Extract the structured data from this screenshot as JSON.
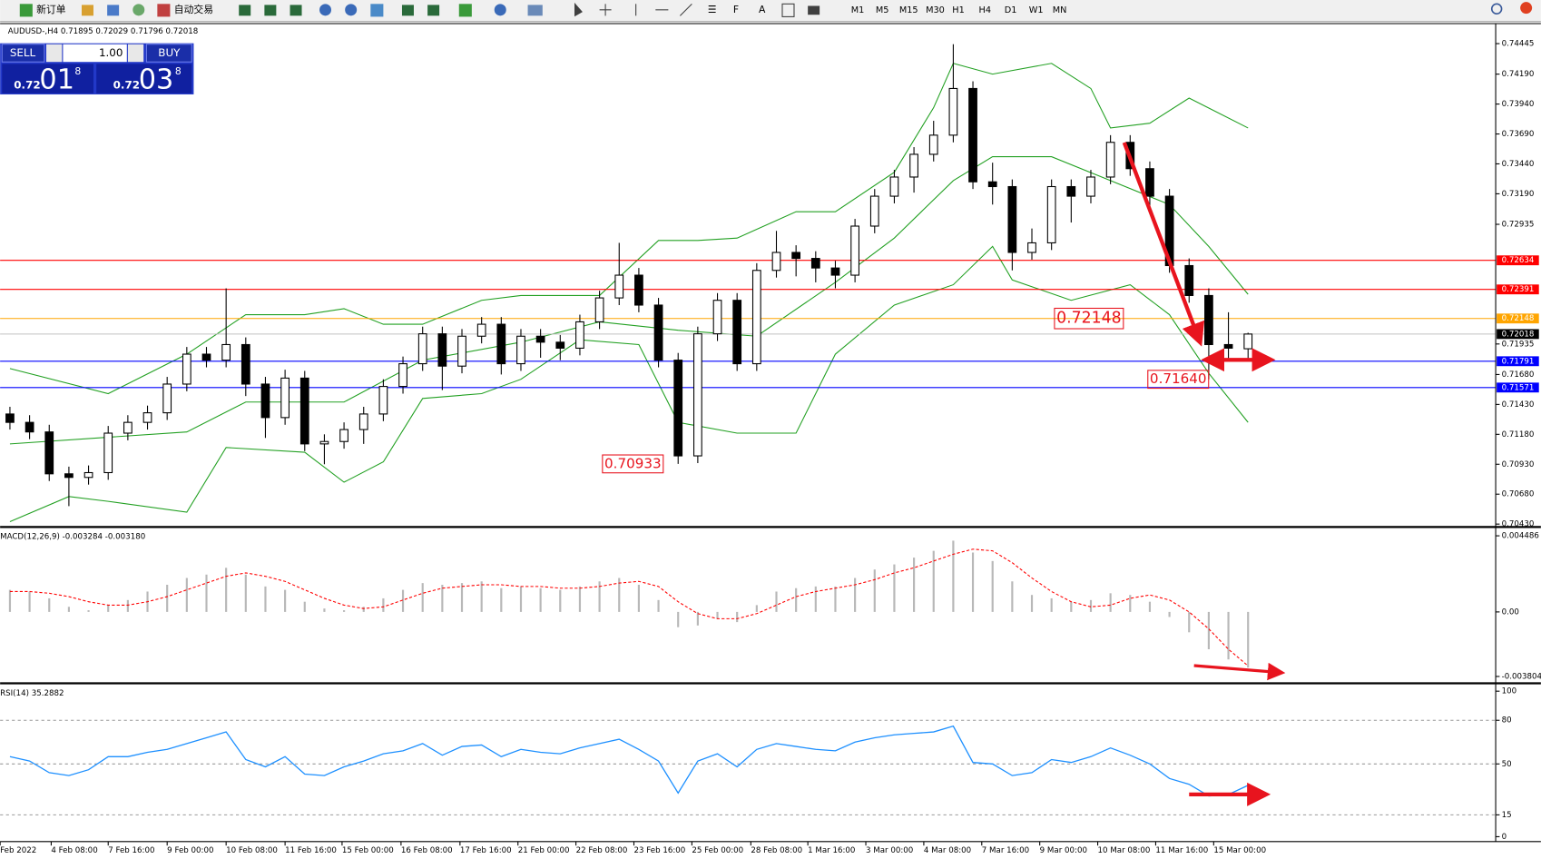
{
  "toolbar": {
    "new_order": "新订单",
    "auto_trading": "自动交易",
    "timeframes": [
      "M1",
      "M5",
      "M15",
      "M30",
      "H1",
      "H4",
      "D1",
      "W1",
      "MN"
    ]
  },
  "trade_panel": {
    "sell": "SELL",
    "lot": "1.00",
    "buy": "BUY",
    "bid_big": "0.72",
    "bid_pips": "01",
    "bid_point": "8",
    "ask_big": "0.72",
    "ask_pips": "03",
    "ask_point": "8"
  },
  "chart_data": [
    {
      "type": "candlestick",
      "title": "AUDUSD-,H4  0.71895 0.72029 0.71796 0.72018",
      "open": [
        0.7135,
        0.7128,
        0.712,
        0.7085,
        0.7082,
        0.7086,
        0.7119,
        0.7128,
        0.7136,
        0.716,
        0.7185,
        0.718,
        0.7193,
        0.716,
        0.7132,
        0.7165,
        0.711,
        0.7112,
        0.7122,
        0.7135,
        0.7158,
        0.7177,
        0.7202,
        0.7175,
        0.72,
        0.721,
        0.7177,
        0.72,
        0.7195,
        0.719,
        0.7212,
        0.7232,
        0.7251,
        0.7226,
        0.718,
        0.71,
        0.7202,
        0.723,
        0.7177,
        0.7255,
        0.727,
        0.7265,
        0.7257,
        0.7251,
        0.7292,
        0.7317,
        0.7333,
        0.7352,
        0.7368,
        0.7407,
        0.7329,
        0.7325,
        0.727,
        0.7278,
        0.7325,
        0.7317,
        0.7333,
        0.7362,
        0.734,
        0.7317,
        0.7259,
        0.7234,
        0.7193,
        0.71895
      ],
      "high": [
        0.7141,
        0.7134,
        0.7126,
        0.7091,
        0.7092,
        0.7125,
        0.7134,
        0.7142,
        0.7166,
        0.7191,
        0.7191,
        0.724,
        0.7199,
        0.7166,
        0.7172,
        0.7171,
        0.7118,
        0.7128,
        0.7141,
        0.7164,
        0.7183,
        0.7208,
        0.7208,
        0.7206,
        0.7216,
        0.7216,
        0.7206,
        0.7206,
        0.7201,
        0.7218,
        0.7238,
        0.7278,
        0.7257,
        0.7232,
        0.7186,
        0.7208,
        0.7236,
        0.7236,
        0.7261,
        0.7288,
        0.7276,
        0.7271,
        0.7263,
        0.7298,
        0.7323,
        0.7339,
        0.7358,
        0.738,
        0.7444,
        0.7413,
        0.7345,
        0.7331,
        0.729,
        0.7331,
        0.7331,
        0.7339,
        0.7368,
        0.7368,
        0.7346,
        0.7323,
        0.7265,
        0.724,
        0.722,
        0.72029
      ],
      "low": [
        0.7122,
        0.7114,
        0.7079,
        0.7058,
        0.7076,
        0.708,
        0.7113,
        0.7122,
        0.713,
        0.7154,
        0.7174,
        0.7174,
        0.715,
        0.7115,
        0.7126,
        0.7104,
        0.7093,
        0.7106,
        0.711,
        0.7129,
        0.7152,
        0.7171,
        0.7155,
        0.7169,
        0.7194,
        0.7168,
        0.7171,
        0.7182,
        0.718,
        0.7184,
        0.7206,
        0.7226,
        0.722,
        0.7174,
        0.70933,
        0.7094,
        0.7196,
        0.7171,
        0.7171,
        0.7249,
        0.725,
        0.7245,
        0.724,
        0.7245,
        0.7286,
        0.7311,
        0.732,
        0.7346,
        0.7362,
        0.7323,
        0.731,
        0.7255,
        0.7264,
        0.7272,
        0.7295,
        0.7311,
        0.7327,
        0.7334,
        0.7305,
        0.7253,
        0.7228,
        0.7164,
        0.718,
        0.71796
      ],
      "close": [
        0.7128,
        0.712,
        0.7085,
        0.7082,
        0.7086,
        0.7119,
        0.7128,
        0.7136,
        0.716,
        0.7185,
        0.718,
        0.7193,
        0.716,
        0.7132,
        0.7165,
        0.711,
        0.7112,
        0.7122,
        0.7135,
        0.7158,
        0.7177,
        0.7202,
        0.7175,
        0.72,
        0.721,
        0.7177,
        0.72,
        0.7195,
        0.719,
        0.7212,
        0.7232,
        0.7251,
        0.7226,
        0.718,
        0.71,
        0.7202,
        0.723,
        0.7177,
        0.7255,
        0.727,
        0.7265,
        0.7257,
        0.7251,
        0.7292,
        0.7317,
        0.7333,
        0.7352,
        0.7368,
        0.7407,
        0.7329,
        0.7325,
        0.727,
        0.7278,
        0.7325,
        0.7317,
        0.7333,
        0.7362,
        0.734,
        0.7317,
        0.7259,
        0.7234,
        0.7193,
        0.719,
        0.72018
      ],
      "overlays": [
        {
          "color": "#22a022",
          "x": [
            0,
            5,
            9,
            12,
            15,
            17,
            19,
            21,
            24,
            26,
            30,
            33,
            35,
            37,
            40,
            42,
            45,
            47,
            48,
            50,
            53,
            55,
            56,
            58,
            60,
            63
          ],
          "values": [
            0.7173,
            0.7152,
            0.7185,
            0.7218,
            0.7218,
            0.7223,
            0.721,
            0.721,
            0.723,
            0.7234,
            0.7234,
            0.728,
            0.728,
            0.7282,
            0.7304,
            0.7304,
            0.7337,
            0.7391,
            0.7428,
            0.7419,
            0.7428,
            0.7407,
            0.7374,
            0.7378,
            0.7399,
            0.7374
          ]
        },
        {
          "color": "#22a022",
          "x": [
            0,
            9,
            12,
            17,
            21,
            26,
            30,
            34,
            38,
            42,
            45,
            48,
            50,
            53,
            56,
            59,
            61,
            63
          ],
          "values": [
            0.711,
            0.712,
            0.7145,
            0.7145,
            0.718,
            0.7195,
            0.7212,
            0.7205,
            0.72,
            0.7245,
            0.7282,
            0.733,
            0.735,
            0.735,
            0.733,
            0.731,
            0.7275,
            0.7235
          ]
        },
        {
          "color": "#22a022",
          "x": [
            0,
            3,
            5,
            9,
            11,
            15,
            17,
            19,
            21,
            24,
            26,
            29,
            32,
            34,
            37,
            40,
            42,
            45,
            48,
            50,
            51,
            54,
            57,
            59,
            61,
            63
          ],
          "values": [
            0.7045,
            0.7066,
            0.7062,
            0.7053,
            0.7107,
            0.7103,
            0.7078,
            0.7095,
            0.7148,
            0.7152,
            0.7164,
            0.7197,
            0.7193,
            0.7128,
            0.7119,
            0.7119,
            0.7185,
            0.7226,
            0.7243,
            0.7275,
            0.7247,
            0.723,
            0.7243,
            0.7218,
            0.7169,
            0.7128
          ]
        }
      ],
      "hlines": [
        {
          "value": 0.72634,
          "color": "#ff0000"
        },
        {
          "value": 0.72391,
          "color": "#ff0000"
        },
        {
          "value": 0.72148,
          "color": "#ffa500"
        },
        {
          "value": 0.72018,
          "color": "#c0c0c0"
        },
        {
          "value": 0.71791,
          "color": "#0000ff"
        },
        {
          "value": 0.71571,
          "color": "#0000ff"
        }
      ],
      "annotations": [
        0.72148,
        {
          "value": 0.7164,
          "label": "0.71640"
        },
        0.70933
      ],
      "ylim": [
        0.70414,
        0.74604
      ],
      "yticks": [
        0.74445,
        {
          "value": 0.7419,
          "label": "0.74190"
        },
        {
          "value": 0.7394,
          "label": "0.73940"
        },
        {
          "value": 0.7369,
          "label": "0.73690"
        },
        {
          "value": 0.7344,
          "label": "0.73440"
        },
        {
          "value": 0.7319,
          "label": "0.73190"
        },
        0.72935,
        0.71935,
        {
          "value": 0.7168,
          "label": "0.71680"
        },
        {
          "value": 0.7143,
          "label": "0.71430"
        },
        {
          "value": 0.7118,
          "label": "0.71180"
        },
        {
          "value": 0.7093,
          "label": "0.70930"
        },
        {
          "value": 0.7068,
          "label": "0.70680"
        },
        {
          "value": 0.7043,
          "label": "0.70430"
        }
      ]
    },
    {
      "type": "macd",
      "title": "MACD(12,26,9) -0.003284 -0.003180",
      "series": [
        {
          "style": "histogram",
          "color": "#b8b8b8",
          "values": [
            0.0013,
            0.0012,
            0.0008,
            0.0003,
            0.0001,
            0.0004,
            0.0007,
            0.0012,
            0.0016,
            0.002,
            0.0022,
            0.0026,
            0.0022,
            0.0015,
            0.0013,
            0.0006,
            0.0002,
            0.0001,
            0.0003,
            0.0008,
            0.0013,
            0.0017,
            0.0016,
            0.0017,
            0.0018,
            0.0014,
            0.0015,
            0.0014,
            0.0013,
            0.0015,
            0.0018,
            0.002,
            0.0016,
            0.0007,
            -0.0009,
            -0.0008,
            -0.0004,
            -0.0006,
            0.0004,
            0.0012,
            0.0014,
            0.0015,
            0.0015,
            0.002,
            0.0025,
            0.0028,
            0.0032,
            0.0036,
            0.0042,
            0.0035,
            0.003,
            0.0018,
            0.001,
            0.0008,
            0.0006,
            0.0007,
            0.0011,
            0.001,
            0.0006,
            -0.0003,
            -0.0012,
            -0.0022,
            -0.0028,
            -0.003284
          ]
        },
        {
          "style": "dashed",
          "color": "#ff0000",
          "values": [
            0.0012,
            0.0012,
            0.0011,
            0.0009,
            0.0006,
            0.0004,
            0.0004,
            0.0006,
            0.0009,
            0.0013,
            0.0017,
            0.0021,
            0.0023,
            0.0021,
            0.0018,
            0.0013,
            0.0008,
            0.0004,
            0.0002,
            0.0003,
            0.0007,
            0.0011,
            0.0014,
            0.0015,
            0.0016,
            0.0016,
            0.0015,
            0.0015,
            0.0014,
            0.0014,
            0.0015,
            0.0017,
            0.0018,
            0.0015,
            0.0006,
            -0.0001,
            -0.0004,
            -0.0004,
            -0.0001,
            0.0004,
            0.0009,
            0.0012,
            0.0014,
            0.0016,
            0.0019,
            0.0023,
            0.0026,
            0.003,
            0.0034,
            0.0037,
            0.0036,
            0.0029,
            0.002,
            0.0012,
            0.0006,
            0.0003,
            0.0004,
            0.0008,
            0.001,
            0.0007,
            0.0,
            -0.001,
            -0.0022,
            -0.00318
          ]
        }
      ],
      "ylim": [
        -0.00415,
        0.00489
      ],
      "yticks": [
        0.004486,
        {
          "value": 0,
          "label": "0.00"
        },
        -0.003804
      ]
    },
    {
      "type": "line",
      "title": "RSI(14) 35.2882",
      "color": "#1e90ff",
      "values": [
        55,
        52,
        44,
        42,
        46,
        55,
        55,
        58,
        60,
        64,
        68,
        72,
        53,
        48,
        55,
        43,
        42,
        48,
        52,
        57,
        59,
        64,
        56,
        62,
        63,
        55,
        60,
        58,
        57,
        61,
        64,
        67,
        60,
        52,
        30,
        52,
        57,
        48,
        60,
        64,
        62,
        60,
        59,
        65,
        68,
        70,
        71,
        72,
        76,
        51,
        50,
        42,
        44,
        53,
        51,
        55,
        61,
        56,
        50,
        40,
        36,
        28,
        29,
        35.2882
      ],
      "ylim": [
        0,
        100
      ],
      "yticks": [
        100,
        80,
        50,
        15,
        0
      ],
      "grid": true,
      "xticks": [
        {
          "value": -0.5,
          "label": "Feb 2022"
        },
        {
          "value": 2.1,
          "label": "4 Feb 08:00"
        },
        {
          "value": 5,
          "label": "7 Feb 16:00"
        },
        {
          "value": 8,
          "label": "9 Feb 00:00"
        },
        {
          "value": 11,
          "label": "10 Feb 08:00"
        },
        {
          "value": 14,
          "label": "11 Feb 16:00"
        },
        {
          "value": 16.9,
          "label": "15 Feb 00:00"
        },
        {
          "value": 19.9,
          "label": "16 Feb 08:00"
        },
        {
          "value": 22.9,
          "label": "17 Feb 16:00"
        },
        {
          "value": 25.85,
          "label": "21 Feb 00:00"
        },
        {
          "value": 28.8,
          "label": "22 Feb 08:00"
        },
        {
          "value": 31.75,
          "label": "23 Feb 16:00"
        },
        {
          "value": 34.7,
          "label": "25 Feb 00:00"
        },
        {
          "value": 37.7,
          "label": "28 Feb 08:00"
        },
        {
          "value": 40.6,
          "label": "1 Mar 16:00"
        },
        {
          "value": 43.55,
          "label": "3 Mar 00:00"
        },
        {
          "value": 46.5,
          "label": "4 Mar 08:00"
        },
        {
          "value": 49.45,
          "label": "7 Mar 16:00"
        },
        {
          "value": 52.4,
          "label": "9 Mar 00:00"
        },
        {
          "value": 55.35,
          "label": "10 Mar 08:00"
        },
        {
          "value": 58.3,
          "label": "11 Mar 16:00"
        },
        {
          "value": 61.25,
          "label": "15 Mar 00:00"
        }
      ]
    }
  ]
}
